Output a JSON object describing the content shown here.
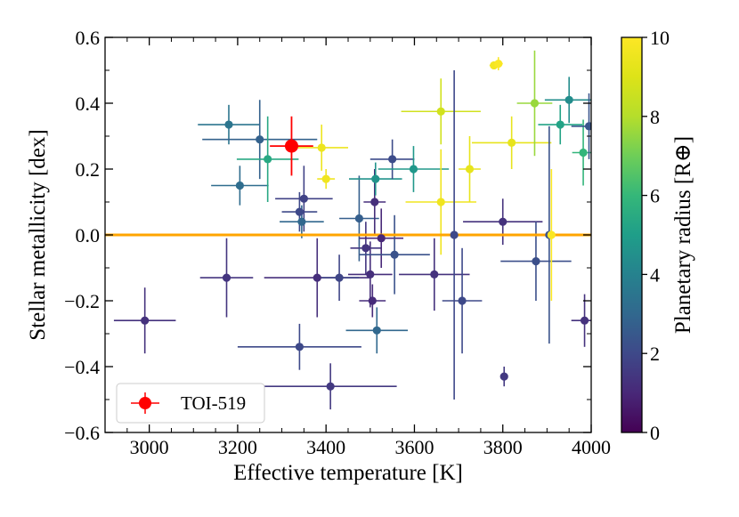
{
  "chart_data": {
    "type": "scatter",
    "xlabel": "Effective temperature [K]",
    "ylabel": "Stellar metallicity [dex]",
    "colorbar_label": "Planetary radius [R⊕]",
    "xlim": [
      2900,
      4000
    ],
    "ylim": [
      -0.6,
      0.6
    ],
    "clim": [
      0,
      10
    ],
    "x_ticks": [
      3000,
      3200,
      3400,
      3600,
      3800,
      4000
    ],
    "y_ticks": [
      -0.6,
      -0.4,
      -0.2,
      0.0,
      0.2,
      0.4,
      0.6
    ],
    "colorbar_ticks": [
      0,
      2,
      4,
      6,
      8,
      10
    ],
    "x_tick_labels": [
      "3000",
      "3200",
      "3400",
      "3600",
      "3800",
      "4000"
    ],
    "y_tick_labels": [
      "−0.6",
      "−0.4",
      "−0.2",
      "0.0",
      "0.2",
      "0.4",
      "0.6"
    ],
    "colorbar_tick_labels": [
      "0",
      "2",
      "4",
      "6",
      "8",
      "10"
    ],
    "reference_line": {
      "y": 0.0,
      "color": "#ffa500"
    },
    "highlight": {
      "name": "TOI-519",
      "x": 3322,
      "y": 0.27,
      "xerr": 49,
      "yerr": 0.09,
      "color": "#ff0000"
    },
    "legend": {
      "placement": "lower-left",
      "label": "TOI-519"
    },
    "series": [
      {
        "points": [
          {
            "x": 2990,
            "y": -0.26,
            "xerr": 70,
            "yerr": 0.1,
            "r": 1.3
          },
          {
            "x": 3180,
            "y": 0.335,
            "xerr": 70,
            "yerr": 0.06,
            "r": 3.5
          },
          {
            "x": 3205,
            "y": 0.15,
            "xerr": 65,
            "yerr": 0.06,
            "r": 3.2
          },
          {
            "x": 3175,
            "y": -0.13,
            "xerr": 60,
            "yerr": 0.12,
            "r": 1.4
          },
          {
            "x": 3250,
            "y": 0.29,
            "xerr": 130,
            "yerr": 0.12,
            "r": 2.8
          },
          {
            "x": 3268,
            "y": 0.23,
            "xerr": 70,
            "yerr": 0.13,
            "r": 5.4
          },
          {
            "x": 3340,
            "y": 0.07,
            "xerr": 40,
            "yerr": 0.06,
            "r": 2.0
          },
          {
            "x": 3345,
            "y": 0.04,
            "xerr": 50,
            "yerr": 0.05,
            "r": 3.0
          },
          {
            "x": 3350,
            "y": 0.11,
            "xerr": 65,
            "yerr": 0.1,
            "r": 1.8
          },
          {
            "x": 3340,
            "y": -0.34,
            "xerr": 140,
            "yerr": 0.07,
            "r": 2.0
          },
          {
            "x": 3380,
            "y": -0.13,
            "xerr": 120,
            "yerr": 0.12,
            "r": 1.2
          },
          {
            "x": 3390,
            "y": 0.265,
            "xerr": 60,
            "yerr": 0.07,
            "r": 9.5
          },
          {
            "x": 3400,
            "y": 0.17,
            "xerr": 20,
            "yerr": 0.03,
            "r": 9.6
          },
          {
            "x": 3410,
            "y": -0.46,
            "xerr": 150,
            "yerr": 0.07,
            "r": 1.5
          },
          {
            "x": 3430,
            "y": -0.13,
            "xerr": 45,
            "yerr": 0.07,
            "r": 1.9
          },
          {
            "x": 3475,
            "y": 0.05,
            "xerr": 45,
            "yerr": 0.13,
            "r": 2.7
          },
          {
            "x": 3490,
            "y": -0.04,
            "xerr": 35,
            "yerr": 0.08,
            "r": 1.4
          },
          {
            "x": 3500,
            "y": -0.12,
            "xerr": 50,
            "yerr": 0.1,
            "r": 1.2
          },
          {
            "x": 3505,
            "y": -0.2,
            "xerr": 30,
            "yerr": 0.05,
            "r": 1.1
          },
          {
            "x": 3510,
            "y": 0.1,
            "xerr": 25,
            "yerr": 0.1,
            "r": 1.2
          },
          {
            "x": 3512,
            "y": 0.17,
            "xerr": 60,
            "yerr": 0.05,
            "r": 4.6
          },
          {
            "x": 3515,
            "y": -0.29,
            "xerr": 70,
            "yerr": 0.07,
            "r": 3.0
          },
          {
            "x": 3525,
            "y": -0.01,
            "xerr": 50,
            "yerr": 0.09,
            "r": 1.0
          },
          {
            "x": 3550,
            "y": 0.23,
            "xerr": 50,
            "yerr": 0.06,
            "r": 2.1
          },
          {
            "x": 3555,
            "y": -0.06,
            "xerr": 80,
            "yerr": 0.12,
            "r": 2.3
          },
          {
            "x": 3598,
            "y": 0.2,
            "xerr": 80,
            "yerr": 0.07,
            "r": 4.8
          },
          {
            "x": 3645,
            "y": -0.12,
            "xerr": 80,
            "yerr": 0.11,
            "r": 1.3
          },
          {
            "x": 3660,
            "y": 0.375,
            "xerr": 90,
            "yerr": 0.1,
            "r": 8.7
          },
          {
            "x": 3660,
            "y": 0.1,
            "xerr": 80,
            "yerr": 0.16,
            "r": 9.6
          },
          {
            "x": 3690,
            "y": 0.0,
            "xerr": 20,
            "yerr": 0.5,
            "r": 2.0
          },
          {
            "x": 3708,
            "y": -0.2,
            "xerr": 45,
            "yerr": 0.16,
            "r": 2.0
          },
          {
            "x": 3725,
            "y": 0.2,
            "xerr": 25,
            "yerr": 0.1,
            "r": 9.3
          },
          {
            "x": 3780,
            "y": 0.515,
            "xerr": 10,
            "yerr": 0.01,
            "r": 9.7
          },
          {
            "x": 3790,
            "y": 0.52,
            "xerr": 10,
            "yerr": 0.02,
            "r": 9.9
          },
          {
            "x": 3800,
            "y": 0.04,
            "xerr": 90,
            "yerr": 0.07,
            "r": 1.3
          },
          {
            "x": 3803,
            "y": -0.43,
            "xerr": 6,
            "yerr": 0.03,
            "r": 1.5
          },
          {
            "x": 3820,
            "y": 0.28,
            "xerr": 90,
            "yerr": 0.08,
            "r": 9.3
          },
          {
            "x": 3872,
            "y": 0.4,
            "xerr": 40,
            "yerr": 0.16,
            "r": 7.6
          },
          {
            "x": 3875,
            "y": -0.08,
            "xerr": 80,
            "yerr": 0.12,
            "r": 2.2
          },
          {
            "x": 3905,
            "y": 0.0,
            "xerr": 30,
            "yerr": 0.33,
            "r": 2.3
          },
          {
            "x": 3910,
            "y": 0.0,
            "xerr": 30,
            "yerr": 0.2,
            "r": 9.9
          },
          {
            "x": 3930,
            "y": 0.335,
            "xerr": 50,
            "yerr": 0.06,
            "r": 5.2
          },
          {
            "x": 3950,
            "y": 0.41,
            "xerr": 55,
            "yerr": 0.07,
            "r": 4.4
          },
          {
            "x": 3982,
            "y": 0.25,
            "xerr": 25,
            "yerr": 0.1,
            "r": 5.9
          },
          {
            "x": 3985,
            "y": -0.26,
            "xerr": 30,
            "yerr": 0.08,
            "r": 1.3
          },
          {
            "x": 3995,
            "y": 0.33,
            "xerr": 40,
            "yerr": 0.1,
            "r": 2.4
          }
        ]
      }
    ]
  }
}
